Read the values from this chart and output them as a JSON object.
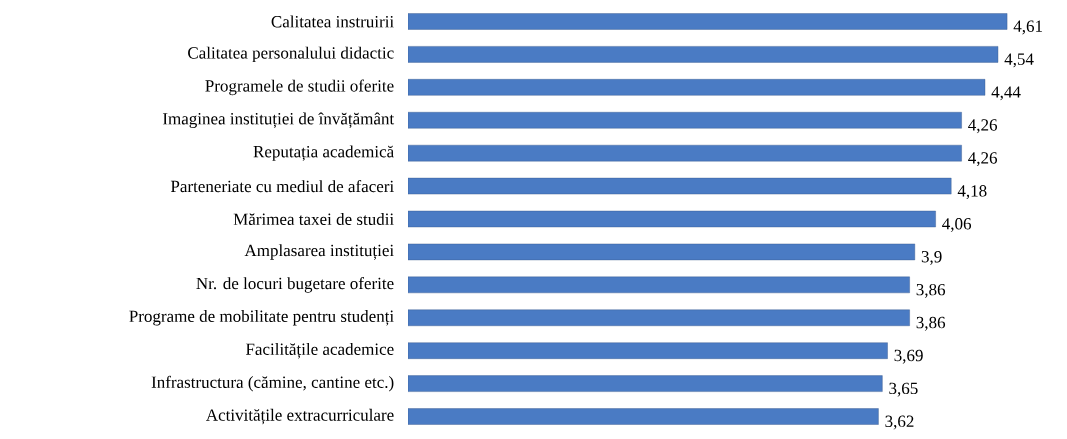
{
  "chart_data": {
    "type": "bar",
    "orientation": "horizontal",
    "categories": [
      "Calitatea instruirii",
      "Calitatea personalului didactic",
      "Programele de studii oferite",
      "Imaginea instituției de învățământ",
      "Reputația academică",
      "Parteneriate cu mediul de afaceri",
      "Mărimea taxei de studii",
      "Amplasarea instituției",
      "Nr. de locuri bugetare oferite",
      "Programe de mobilitate pentru studenți",
      "Facilitățile academice",
      "Infrastructura (cămine, cantine etc.)",
      "Activitățile extracurriculare"
    ],
    "values": [
      4.61,
      4.54,
      4.44,
      4.26,
      4.26,
      4.18,
      4.06,
      3.9,
      3.86,
      3.86,
      3.69,
      3.65,
      3.62
    ],
    "value_labels": [
      "4,61",
      "4,54",
      "4,44",
      "4,26",
      "4,26",
      "4,18",
      "4,06",
      "3,9",
      "3,86",
      "3,86",
      "3,69",
      "3,65",
      "3,62"
    ],
    "color": "#4a7bc4"
  }
}
